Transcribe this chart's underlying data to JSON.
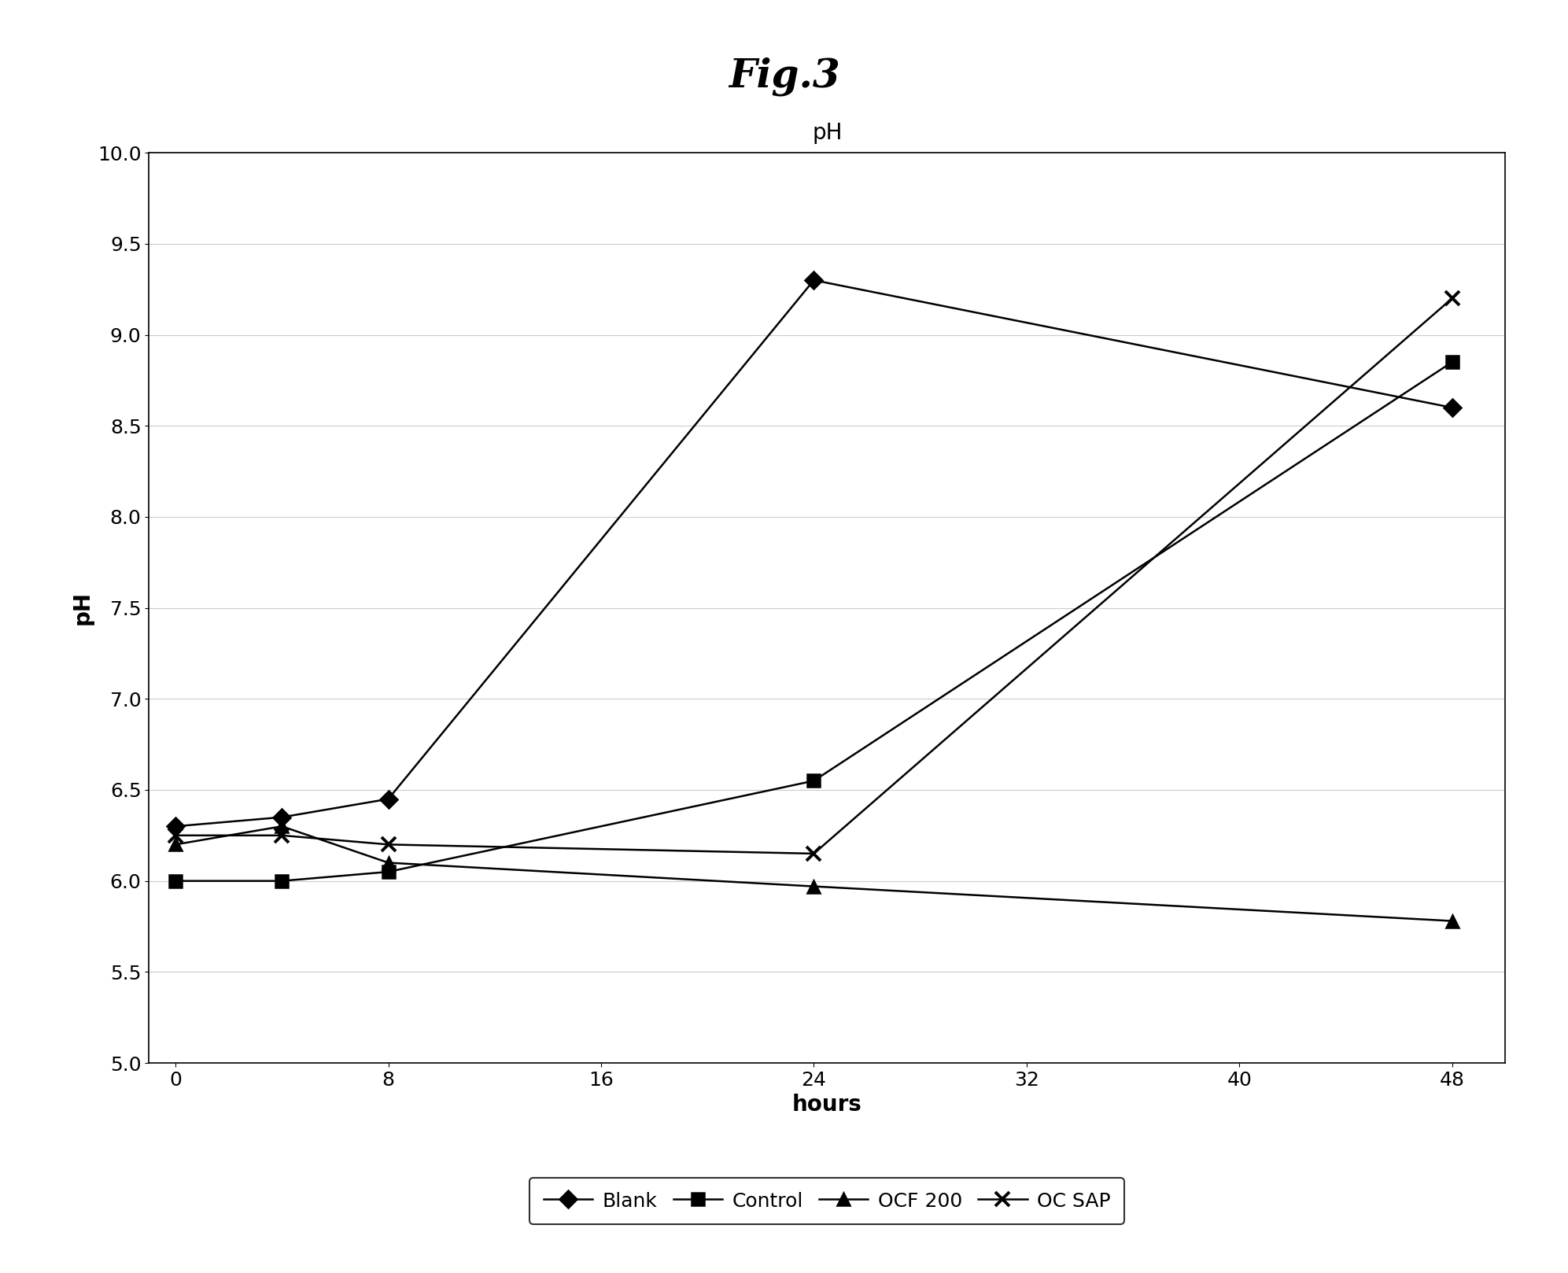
{
  "title_fig": "Fig.3",
  "chart_title": "pH",
  "xlabel": "hours",
  "ylabel": "pH",
  "ylim": [
    5.0,
    10.0
  ],
  "yticks": [
    5.0,
    5.5,
    6.0,
    6.5,
    7.0,
    7.5,
    8.0,
    8.5,
    9.0,
    9.5,
    10.0
  ],
  "xticks": [
    0,
    8,
    16,
    24,
    32,
    40,
    48
  ],
  "x_values": [
    0,
    4,
    8,
    24,
    48
  ],
  "series": [
    {
      "label": "Blank",
      "values": [
        6.3,
        6.35,
        6.45,
        9.3,
        8.6
      ],
      "marker": "D",
      "linestyle": "-",
      "color": "#000000"
    },
    {
      "label": "Control",
      "values": [
        6.0,
        6.0,
        6.05,
        6.55,
        8.85
      ],
      "marker": "s",
      "linestyle": "-",
      "color": "#000000"
    },
    {
      "label": "OCF 200",
      "values": [
        6.2,
        6.3,
        6.1,
        5.97,
        5.78
      ],
      "marker": "^",
      "linestyle": "-",
      "color": "#000000"
    },
    {
      "label": "OC SAP",
      "values": [
        6.25,
        6.25,
        6.2,
        6.15,
        9.2
      ],
      "marker": "x",
      "linestyle": "-",
      "color": "#000000"
    }
  ],
  "background_color": "#ffffff",
  "plot_bg_color": "#ffffff",
  "grid_color": "#cccccc",
  "title_fontsize": 36,
  "axis_label_fontsize": 20,
  "tick_fontsize": 18,
  "chart_title_fontsize": 20,
  "legend_fontsize": 18
}
